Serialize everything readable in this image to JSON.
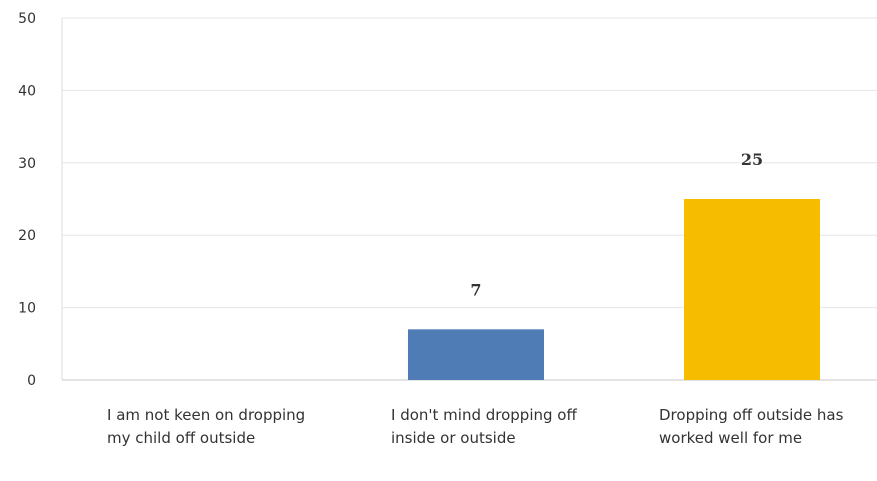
{
  "chart_data": {
    "type": "bar",
    "categories": [
      "I am not keen on dropping my child off outside",
      "I don't mind dropping off inside or outside",
      "Dropping off outside has worked well for me"
    ],
    "values": [
      0,
      7,
      25
    ],
    "data_labels": [
      "",
      "7",
      "25"
    ],
    "colors": [
      "#507cb6",
      "#507cb6",
      "#f6bd00"
    ],
    "ylim": [
      0,
      50
    ],
    "yticks": [
      0,
      10,
      20,
      30,
      40,
      50
    ],
    "ytick_labels": [
      "0",
      "10",
      "20",
      "30",
      "40",
      "50"
    ],
    "grid": true,
    "legend": "none",
    "title": "",
    "xlabel": "",
    "ylabel": ""
  }
}
